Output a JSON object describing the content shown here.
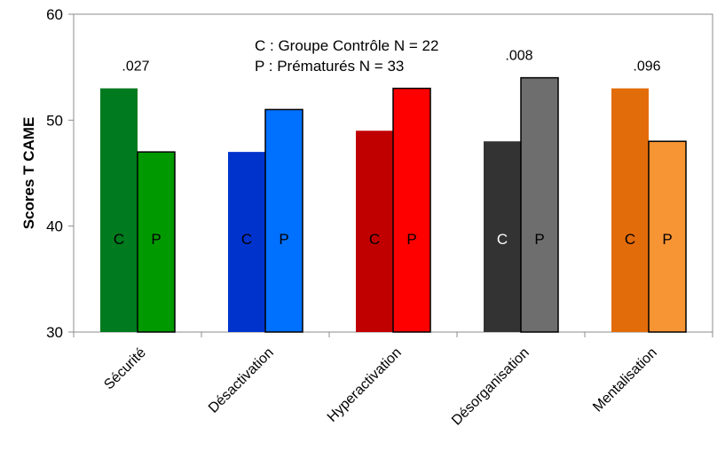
{
  "chart_data": {
    "type": "bar",
    "ylabel": "Scores T CAME",
    "ylim": [
      30,
      60
    ],
    "yticks": [
      30,
      40,
      50,
      60
    ],
    "grid": false,
    "legend": [
      "C : Groupe Contrôle N = 22",
      "P : Prématurés N = 33"
    ],
    "categories": [
      "Sécurité",
      "Désactivation",
      "Hyperactivation",
      "Désorganisation",
      "Mentalisation"
    ],
    "series": [
      {
        "name": "C",
        "values": [
          53,
          47,
          49,
          48,
          53
        ],
        "colors": [
          "#007A1E",
          "#0033CC",
          "#C00000",
          "#333333",
          "#E36C0A"
        ]
      },
      {
        "name": "P",
        "values": [
          47,
          51,
          53,
          54,
          48
        ],
        "colors": [
          "#009900",
          "#0070FF",
          "#FF0000",
          "#6E6E6E",
          "#F79433"
        ]
      }
    ],
    "bar_text": [
      [
        "C",
        "P"
      ],
      [
        "C",
        "P"
      ],
      [
        "C",
        "P"
      ],
      [
        "C",
        "P"
      ],
      [
        "C",
        "P"
      ]
    ],
    "bar_text_colors": [
      [
        "#000000",
        "#000000"
      ],
      [
        "#000000",
        "#000000"
      ],
      [
        "#000000",
        "#000000"
      ],
      [
        "#ffffff",
        "#000000"
      ],
      [
        "#000000",
        "#000000"
      ]
    ],
    "pvalues": [
      ".027",
      "",
      "",
      ".008",
      ".096"
    ]
  }
}
